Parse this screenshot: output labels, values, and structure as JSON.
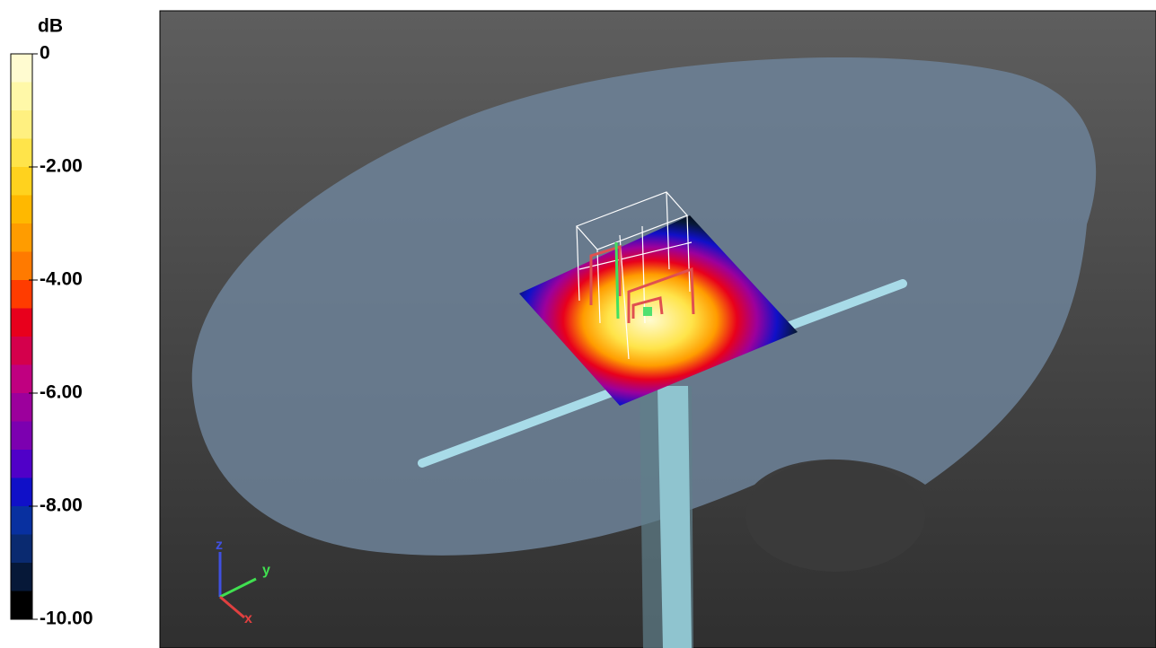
{
  "colorbar": {
    "unit": "dB",
    "vlim": [
      -10,
      0
    ],
    "ticks": [
      0,
      {
        "value": -2,
        "label": "-2.00"
      },
      {
        "value": -4,
        "label": "-4.00"
      },
      {
        "value": -6,
        "label": "-6.00"
      },
      {
        "value": -8,
        "label": "-8.00"
      },
      {
        "value": -10,
        "label": "-10.00"
      }
    ],
    "colors": [
      "#fffbd0",
      "#fff8a8",
      "#fff080",
      "#ffe44a",
      "#ffd21e",
      "#ffb800",
      "#ff9c00",
      "#ff7a00",
      "#ff3c00",
      "#e8001c",
      "#d4004c",
      "#c00080",
      "#9c009c",
      "#7c00b0",
      "#5000c8",
      "#1010c8",
      "#0830a0",
      "#0a2a70",
      "#061838",
      "#000000"
    ]
  },
  "axes": {
    "z": "z",
    "y": "y",
    "x": "x"
  }
}
